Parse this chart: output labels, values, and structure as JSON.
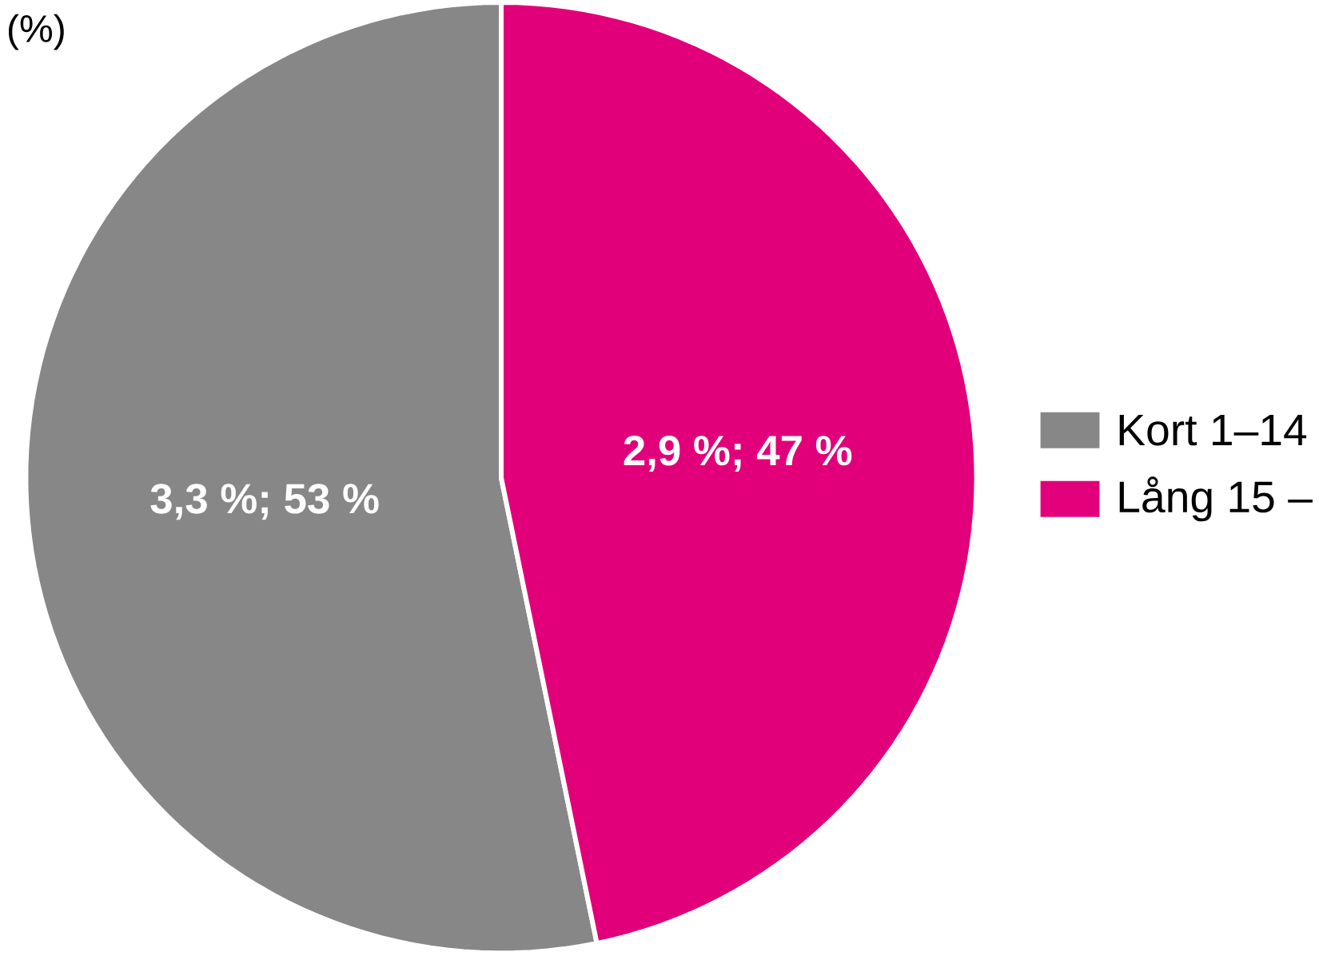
{
  "chart_data": {
    "type": "pie",
    "title": "(%)",
    "categories": [
      "Kort 1–14",
      "Lång 15 –"
    ],
    "values": [
      3.3,
      2.9
    ],
    "colors": [
      "#878787",
      "#e2007a"
    ],
    "value_labels": [
      "3,3 %; 53 %",
      "2,9 %; 47 %"
    ],
    "legend": "right"
  }
}
